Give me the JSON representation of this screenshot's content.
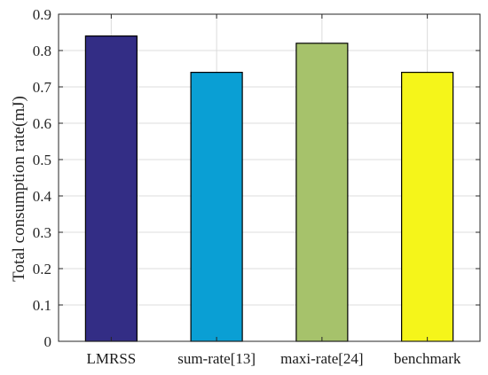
{
  "chart_data": {
    "type": "bar",
    "title": "",
    "xlabel": "",
    "ylabel": "Total consumption rate(mJ)",
    "categories": [
      "LMRSS",
      "sum-rate[13]",
      "maxi-rate[24]",
      "benchmark"
    ],
    "values": [
      0.84,
      0.74,
      0.82,
      0.74
    ],
    "colors": [
      "#332d85",
      "#0a9fd4",
      "#a6c26b",
      "#f5f51a"
    ],
    "ylim": [
      0,
      0.9
    ],
    "yticks": [
      "0",
      "0.1",
      "0.2",
      "0.3",
      "0.4",
      "0.5",
      "0.6",
      "0.7",
      "0.8",
      "0.9"
    ],
    "grid": true,
    "legend": "none"
  }
}
